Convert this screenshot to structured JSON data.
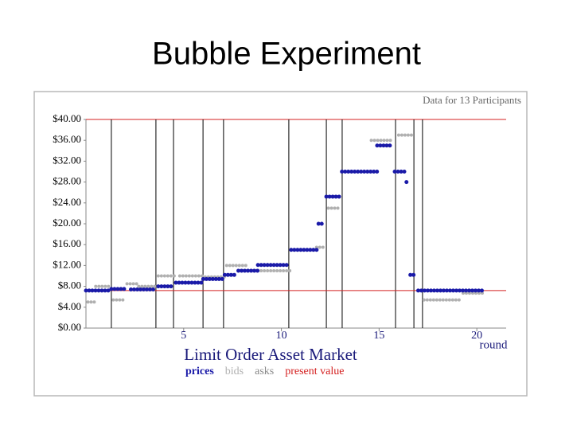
{
  "slide_title": "Bubble Experiment",
  "chart_data": {
    "type": "step",
    "subtitle": "Data for 13 Participants",
    "title": "Limit Order Asset Market",
    "x_label": "round",
    "xlim": [
      0,
      21.5
    ],
    "xticks": [
      5,
      10,
      15,
      20
    ],
    "ylim": [
      0,
      40
    ],
    "yticks": [
      {
        "value": 0,
        "label": "$0.00"
      },
      {
        "value": 4,
        "label": "$4.00"
      },
      {
        "value": 8,
        "label": "$8.00"
      },
      {
        "value": 12,
        "label": "$12.00"
      },
      {
        "value": 16,
        "label": "$16.00"
      },
      {
        "value": 20,
        "label": "$20.00"
      },
      {
        "value": 24,
        "label": "$24.00"
      },
      {
        "value": 28,
        "label": "$28.00"
      },
      {
        "value": 32,
        "label": "$32.00"
      },
      {
        "value": 36,
        "label": "$36.00"
      },
      {
        "value": 40,
        "label": "$40.00"
      }
    ],
    "round_breaks": [
      1.3,
      3.58,
      4.48,
      5.99,
      7.04,
      10.38,
      12.3,
      13.11,
      15.84,
      16.78,
      17.22
    ],
    "series": [
      {
        "name": "prices",
        "color": "#1a1aa8",
        "x_start": [
          0,
          1.3,
          2.3,
          3.7,
          4.6,
          6.0,
          7.1,
          7.8,
          8.8,
          10.5,
          11.9,
          12.3,
          13.1,
          14.9,
          15.8,
          16.4,
          16.6,
          17.0
        ],
        "x_end": [
          1.3,
          2.1,
          3.5,
          4.5,
          6.0,
          7.0,
          7.7,
          8.8,
          10.3,
          11.9,
          12.2,
          13.1,
          14.9,
          15.7,
          16.3,
          16.5,
          16.9,
          20.4
        ],
        "values": [
          7.2,
          7.5,
          7.4,
          8.0,
          8.7,
          9.4,
          10.2,
          11.0,
          12.1,
          15.0,
          20.0,
          25.2,
          30.0,
          35.0,
          30.0,
          28.0,
          10.2,
          7.2
        ]
      },
      {
        "name": "bids",
        "color": "#b0b0b0",
        "x_start": [
          0.1,
          0.5,
          1.4,
          2.1,
          2.7,
          3.7,
          4.8,
          6.1,
          7.2,
          8.8,
          11.8,
          12.4,
          14.6,
          16.0,
          17.3,
          19.3
        ],
        "x_end": [
          0.5,
          1.3,
          2.0,
          2.7,
          3.7,
          4.6,
          6.0,
          7.1,
          8.2,
          10.5,
          12.2,
          13.0,
          15.6,
          16.7,
          19.1,
          20.4
        ],
        "values": [
          5.0,
          8.0,
          5.4,
          8.5,
          8.0,
          10.0,
          10.0,
          9.8,
          12.0,
          11.0,
          15.5,
          23.0,
          36.0,
          37.0,
          5.4,
          6.7
        ]
      },
      {
        "name": "asks",
        "color": "#8a8a8a",
        "x_start": [],
        "x_end": [],
        "values": []
      }
    ],
    "present_value": {
      "name": "present value",
      "color": "#d42020",
      "value": 7.2
    }
  }
}
